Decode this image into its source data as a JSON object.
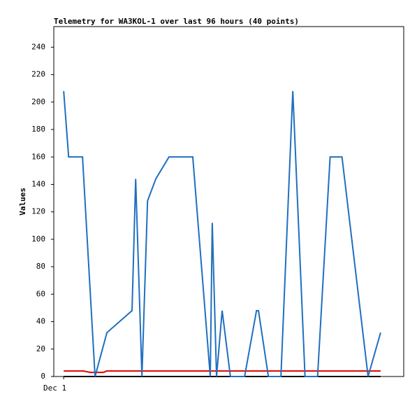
{
  "chart_data": {
    "type": "line",
    "title": "Telemetry for WA3KOL-1 over last 96 hours (40 points)",
    "y_label": "Values",
    "xlim": [
      -3,
      103
    ],
    "xticks": [
      {
        "value": 0,
        "label": "Dec 1"
      }
    ],
    "ylim": [
      0,
      255
    ],
    "yticks": [
      0,
      20,
      40,
      60,
      80,
      100,
      120,
      140,
      160,
      180,
      200,
      220,
      240
    ],
    "series": [
      {
        "color": "#000000",
        "x": [
          0,
          96
        ],
        "values": [
          0,
          0
        ]
      },
      {
        "color": "#e00000",
        "x": [
          0,
          6,
          8,
          12,
          13,
          96
        ],
        "values": [
          4,
          4,
          3,
          3,
          4,
          4
        ]
      },
      {
        "color": "#1f6fbf",
        "x": [
          0,
          1.5,
          5.7,
          9.5,
          13.1,
          20.7,
          21.8,
          23.7,
          25.4,
          27.9,
          31.9,
          39.1,
          44.4,
          45,
          46.3,
          48,
          50.5,
          54.8,
          58.4,
          59,
          62,
          65.8,
          69.4,
          73.1,
          76.9,
          80.7,
          84.3,
          92.2,
          96
        ],
        "values": [
          208,
          160,
          160,
          0,
          32,
          48,
          144,
          0,
          128,
          144,
          160,
          160,
          0,
          112,
          0,
          48,
          0,
          0,
          48,
          48,
          0,
          0,
          208,
          0,
          0,
          160,
          160,
          0,
          32
        ]
      }
    ]
  }
}
